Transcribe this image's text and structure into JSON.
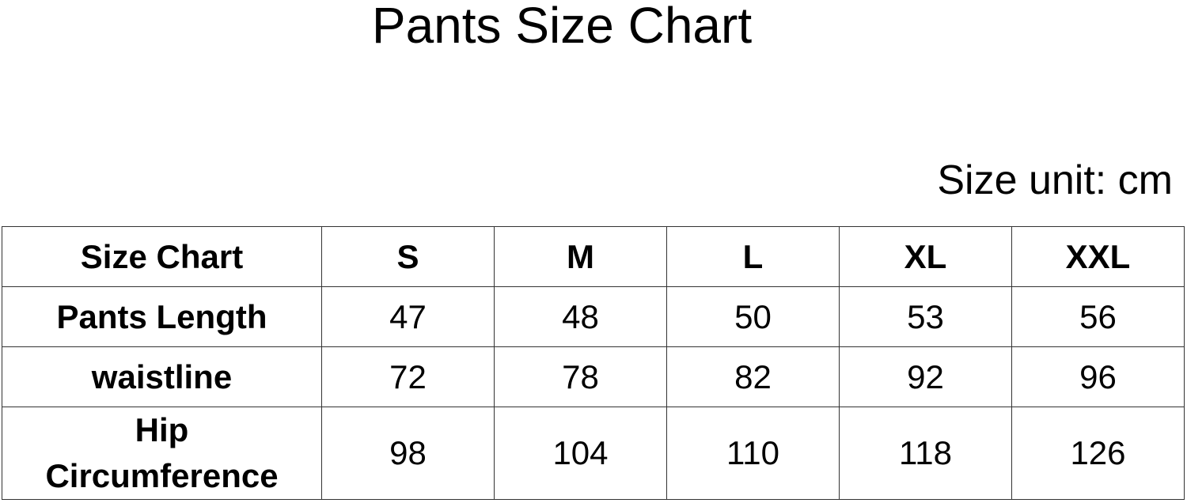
{
  "title": "Pants Size Chart",
  "unit_note": "Size unit: cm",
  "table": {
    "headers": [
      "Size Chart",
      "S",
      "M",
      "L",
      "XL",
      "XXL"
    ],
    "rows": [
      {
        "label": "Pants Length",
        "values": [
          "47",
          "48",
          "50",
          "53",
          "56"
        ]
      },
      {
        "label": "waistline",
        "values": [
          "72",
          "78",
          "82",
          "92",
          "96"
        ]
      },
      {
        "label": "Hip Circumference",
        "label_lines": [
          "Hip",
          "Circumference"
        ],
        "values": [
          "98",
          "104",
          "110",
          "118",
          "126"
        ]
      }
    ]
  }
}
